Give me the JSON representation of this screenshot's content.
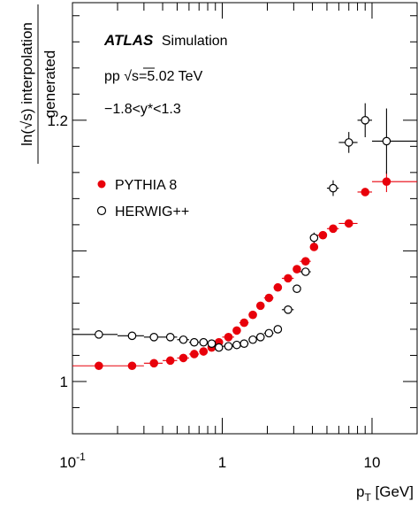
{
  "chart_data": {
    "type": "scatter",
    "xscale": "log",
    "xlim": [
      0.1,
      20
    ],
    "ylim": [
      0.96,
      1.29
    ],
    "xticklabels": [
      {
        "value": 0.1,
        "base": "10",
        "exp": "-1"
      },
      {
        "value": 1,
        "base": "1",
        "exp": ""
      },
      {
        "value": 10,
        "base": "10",
        "exp": ""
      }
    ],
    "yticklabels": [
      {
        "value": 1.0,
        "label": "1"
      },
      {
        "value": 1.2,
        "label": "1.2"
      }
    ],
    "ylabel": {
      "numerator": "ln(√s) interpolation",
      "denominator": "generated"
    },
    "xlabel": {
      "main": "p",
      "sub": "T",
      "unit": " [GeV]"
    },
    "annotations": {
      "atlas": "ATLAS",
      "simulation": "Simulation",
      "energy": "pp √s=5.02 TeV",
      "rapidity": "−1.8<y*<1.3"
    },
    "series": [
      {
        "name": "PYTHIA 8",
        "marker": "filled-circle",
        "color": "#e8000b",
        "x": [
          0.15,
          0.25,
          0.35,
          0.45,
          0.55,
          0.65,
          0.75,
          0.85,
          0.95,
          1.1,
          1.25,
          1.4,
          1.6,
          1.8,
          2.05,
          2.35,
          2.75,
          3.15,
          3.6,
          4.1,
          4.7,
          5.5,
          7.0,
          9.0,
          12.5
        ],
        "xlo": [
          0.1,
          0.2,
          0.3,
          0.4,
          0.5,
          0.6,
          0.7,
          0.8,
          0.9,
          1.0,
          1.2,
          1.3,
          1.5,
          1.7,
          1.9,
          2.2,
          2.5,
          3.0,
          3.3,
          3.9,
          4.3,
          5.0,
          6.0,
          8.0,
          10.0
        ],
        "xhi": [
          0.2,
          0.3,
          0.4,
          0.5,
          0.6,
          0.7,
          0.8,
          0.9,
          1.0,
          1.2,
          1.3,
          1.5,
          1.7,
          1.9,
          2.2,
          2.5,
          3.0,
          3.3,
          3.9,
          4.3,
          5.0,
          6.0,
          8.0,
          10.0,
          20.0
        ],
        "y": [
          1.012,
          1.012,
          1.014,
          1.016,
          1.018,
          1.021,
          1.023,
          1.026,
          1.03,
          1.034,
          1.039,
          1.045,
          1.051,
          1.058,
          1.064,
          1.072,
          1.079,
          1.086,
          1.092,
          1.103,
          1.112,
          1.117,
          1.121,
          1.145,
          1.153
        ],
        "yerr": [
          0.002,
          0.002,
          0.002,
          0.002,
          0.002,
          0.002,
          0.002,
          0.002,
          0.002,
          0.002,
          0.002,
          0.002,
          0.002,
          0.002,
          0.002,
          0.002,
          0.002,
          0.002,
          0.002,
          0.002,
          0.002,
          0.002,
          0.002,
          0.003,
          0.008
        ]
      },
      {
        "name": "HERWIG++",
        "marker": "open-circle",
        "color": "#000000",
        "x": [
          0.15,
          0.25,
          0.35,
          0.45,
          0.55,
          0.65,
          0.75,
          0.85,
          0.95,
          1.1,
          1.25,
          1.4,
          1.6,
          1.8,
          2.05,
          2.35,
          2.75,
          3.15,
          3.6,
          4.1,
          5.5,
          7.0,
          9.0,
          12.5
        ],
        "xlo": [
          0.1,
          0.2,
          0.3,
          0.4,
          0.5,
          0.6,
          0.7,
          0.8,
          0.9,
          1.0,
          1.2,
          1.3,
          1.5,
          1.7,
          1.9,
          2.2,
          2.5,
          3.0,
          3.3,
          3.9,
          5.0,
          6.0,
          8.0,
          10.0
        ],
        "xhi": [
          0.2,
          0.3,
          0.4,
          0.5,
          0.6,
          0.7,
          0.8,
          0.9,
          1.0,
          1.2,
          1.3,
          1.5,
          1.7,
          1.9,
          2.2,
          2.5,
          3.0,
          3.3,
          3.9,
          4.3,
          6.0,
          8.0,
          10.0,
          20.0
        ],
        "y": [
          1.036,
          1.035,
          1.034,
          1.034,
          1.032,
          1.03,
          1.03,
          1.029,
          1.026,
          1.027,
          1.028,
          1.029,
          1.032,
          1.034,
          1.037,
          1.04,
          1.055,
          1.071,
          1.084,
          1.11,
          1.148,
          1.183,
          1.2,
          1.184
        ],
        "yerr": [
          0.002,
          0.002,
          0.002,
          0.002,
          0.002,
          0.002,
          0.002,
          0.002,
          0.002,
          0.002,
          0.002,
          0.002,
          0.002,
          0.002,
          0.002,
          0.002,
          0.002,
          0.003,
          0.003,
          0.004,
          0.006,
          0.008,
          0.013,
          0.025
        ]
      }
    ]
  }
}
